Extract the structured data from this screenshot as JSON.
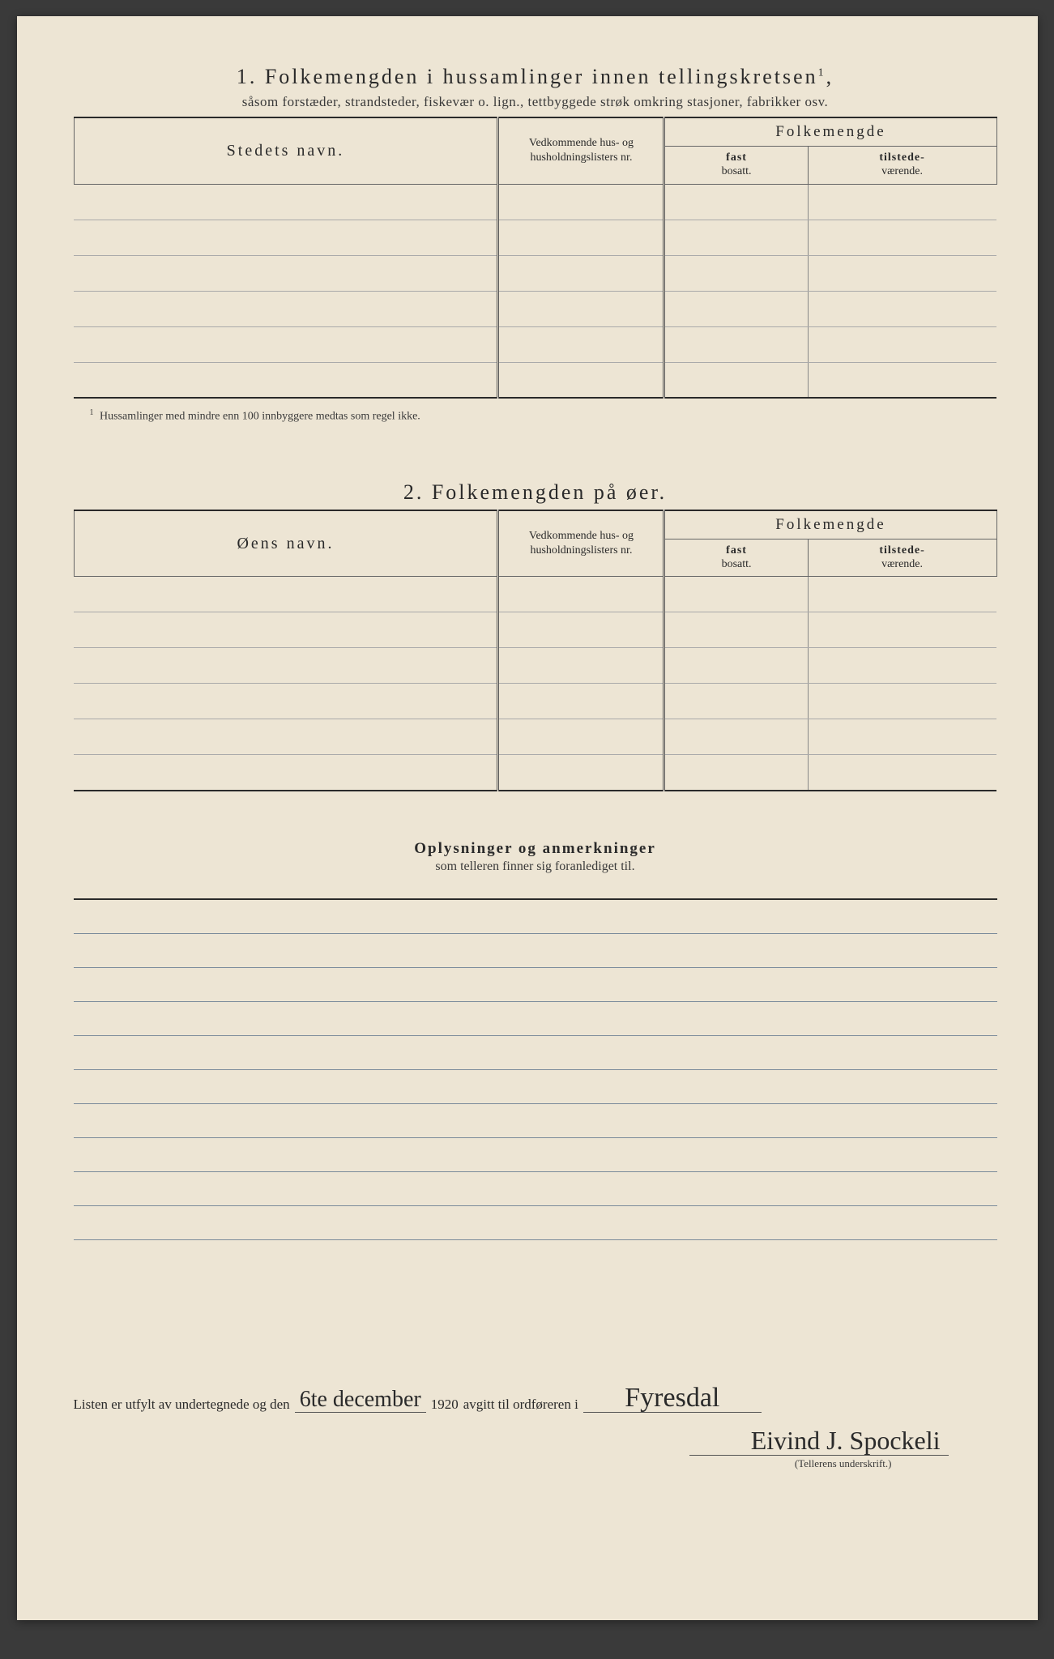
{
  "colors": {
    "paper": "#ede5d4",
    "ink": "#2a2a2a",
    "rule": "#7a8a9a",
    "border": "#666"
  },
  "section1": {
    "number": "1.",
    "title": "Folkemengden i hussamlinger innen tellingskretsen",
    "title_sup": "1",
    "title_tail": ",",
    "subtitle": "såsom forstæder, strandsteder, fiskevær o. lign., tettbyggede strøk omkring stasjoner, fabrikker osv.",
    "columns": {
      "name": "Stedets navn.",
      "list": "Vedkommende hus- og husholdningslisters nr.",
      "folk_head": "Folkemengde",
      "fast_b": "fast",
      "fast": "bosatt.",
      "til_b": "tilstede-",
      "til": "værende."
    },
    "row_count": 6,
    "footnote_mark": "1",
    "footnote": "Hussamlinger med mindre enn 100 innbyggere medtas som regel ikke."
  },
  "section2": {
    "number": "2.",
    "title": "Folkemengden på øer.",
    "columns": {
      "name": "Øens navn.",
      "list": "Vedkommende hus- og husholdningslisters nr.",
      "folk_head": "Folkemengde",
      "fast_b": "fast",
      "fast": "bosatt.",
      "til_b": "tilstede-",
      "til": "værende."
    },
    "row_count": 6
  },
  "remarks": {
    "title": "Oplysninger og anmerkninger",
    "subtitle": "som telleren finner sig foranlediget til.",
    "line_count": 10
  },
  "signature": {
    "prefix": "Listen er utfylt av undertegnede og den",
    "date_hand": "6te december",
    "year_tail": "1920",
    "mid": "avgitt til ordføreren i",
    "place_hand": "Fyresdal",
    "name_hand": "Eivind J. Spockeli",
    "caption": "(Tellerens underskrift.)"
  }
}
